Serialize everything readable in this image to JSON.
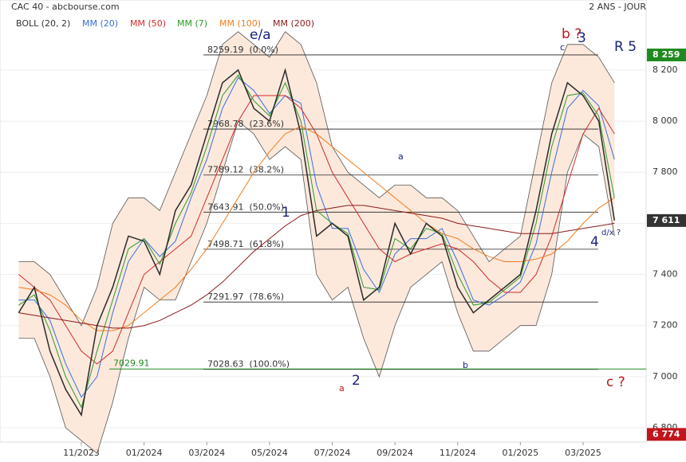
{
  "chart_data": {
    "type": "line",
    "title": "CAC 40 - abcbourse.com",
    "subtitle": "2 ANS - JOUR",
    "categories": [
      null,
      null,
      null,
      null,
      "11/2023",
      null,
      null,
      null,
      "01/2024",
      null,
      null,
      null,
      "03/2024",
      null,
      null,
      null,
      "05/2024",
      null,
      null,
      null,
      "07/2024",
      null,
      null,
      null,
      "09/2024",
      null,
      null,
      null,
      "11/2024",
      null,
      null,
      null,
      "01/2025",
      null,
      null,
      null,
      "03/2025",
      null,
      null
    ],
    "values": [
      7250,
      7350,
      7100,
      6950,
      6850,
      7200,
      7350,
      7550,
      7530,
      7400,
      7650,
      7750,
      7950,
      8150,
      8200,
      8050,
      8000,
      8200,
      7950,
      7550,
      7600,
      7550,
      7300,
      7350,
      7600,
      7480,
      7600,
      7550,
      7350,
      7250,
      7300,
      7350,
      7400,
      7650,
      7950,
      8150,
      8100,
      8000,
      7611
    ],
    "color": "#2a2a2a",
    "bands": {
      "name": "BOLL (20, 2)",
      "color": "#333333",
      "upper": [
        7450,
        7450,
        7400,
        7300,
        7200,
        7350,
        7600,
        7700,
        7700,
        7650,
        7800,
        7950,
        8100,
        8300,
        8350,
        8300,
        8250,
        8350,
        8300,
        8150,
        7900,
        7800,
        7750,
        7700,
        7750,
        7750,
        7700,
        7700,
        7650,
        7550,
        7450,
        7500,
        7550,
        7850,
        8150,
        8300,
        8300,
        8250,
        8150
      ],
      "lower": [
        7150,
        7150,
        7000,
        6800,
        6750,
        6700,
        6900,
        7150,
        7350,
        7300,
        7300,
        7450,
        7600,
        7800,
        8000,
        7950,
        7850,
        7900,
        7850,
        7400,
        7300,
        7350,
        7150,
        7000,
        7200,
        7350,
        7400,
        7450,
        7250,
        7100,
        7100,
        7150,
        7200,
        7200,
        7400,
        7800,
        7950,
        7900,
        7550
      ]
    },
    "series": [
      {
        "name": "MM (20)",
        "color": "#3a6fd8",
        "values": [
          7300,
          7300,
          7220,
          7050,
          6920,
          7000,
          7250,
          7450,
          7540,
          7470,
          7530,
          7700,
          7850,
          8050,
          8170,
          8120,
          8030,
          8100,
          8070,
          7750,
          7580,
          7580,
          7420,
          7330,
          7480,
          7540,
          7540,
          7580,
          7450,
          7300,
          7280,
          7320,
          7370,
          7520,
          7800,
          8050,
          8120,
          8060,
          7850
        ]
      },
      {
        "name": "MM (50)",
        "color": "#d42a2a",
        "values": [
          7400,
          7350,
          7300,
          7200,
          7100,
          7050,
          7100,
          7250,
          7400,
          7450,
          7500,
          7550,
          7700,
          7850,
          8000,
          8100,
          8100,
          8100,
          8050,
          7950,
          7800,
          7700,
          7600,
          7500,
          7450,
          7480,
          7500,
          7520,
          7500,
          7450,
          7380,
          7330,
          7330,
          7400,
          7550,
          7750,
          7950,
          8050,
          7950
        ]
      },
      {
        "name": "MM (7)",
        "color": "#2a9a2a",
        "values": [
          7280,
          7320,
          7180,
          7000,
          6880,
          7100,
          7300,
          7500,
          7540,
          7440,
          7600,
          7720,
          7900,
          8100,
          8180,
          8080,
          8020,
          8150,
          8000,
          7650,
          7600,
          7560,
          7350,
          7340,
          7540,
          7500,
          7580,
          7560,
          7400,
          7280,
          7290,
          7340,
          7390,
          7600,
          7900,
          8100,
          8110,
          8020,
          7700
        ]
      },
      {
        "name": "MM (100)",
        "color": "#f07d1e",
        "values": [
          7350,
          7340,
          7320,
          7280,
          7220,
          7180,
          7180,
          7200,
          7250,
          7300,
          7350,
          7420,
          7500,
          7600,
          7700,
          7800,
          7880,
          7950,
          7980,
          7950,
          7900,
          7850,
          7800,
          7750,
          7700,
          7650,
          7600,
          7560,
          7540,
          7500,
          7470,
          7450,
          7450,
          7460,
          7480,
          7530,
          7600,
          7660,
          7700
        ]
      },
      {
        "name": "MM (200)",
        "color": "#8b1a1a",
        "values": [
          7250,
          7240,
          7230,
          7220,
          7210,
          7200,
          7190,
          7190,
          7200,
          7220,
          7250,
          7280,
          7320,
          7370,
          7430,
          7490,
          7540,
          7590,
          7630,
          7650,
          7660,
          7670,
          7670,
          7660,
          7650,
          7640,
          7630,
          7620,
          7600,
          7590,
          7580,
          7570,
          7560,
          7560,
          7560,
          7570,
          7580,
          7590,
          7600
        ]
      }
    ],
    "ylim": [
      6744,
      8474
    ],
    "yticks": [
      {
        "value": 6800,
        "label": "6 800"
      },
      {
        "value": 7000,
        "label": "7 000"
      },
      {
        "value": 7200,
        "label": "7 200"
      },
      {
        "value": 7400,
        "label": "7 400"
      },
      {
        "value": 7600,
        "label": "7 600"
      },
      {
        "value": 7800,
        "label": "7 800"
      },
      {
        "value": 8000,
        "label": "8 000"
      },
      {
        "value": 8200,
        "label": "8 200"
      }
    ],
    "grid": true,
    "price_markers": [
      {
        "value": 8259,
        "label": "8 259",
        "color": "#1f8a1f"
      },
      {
        "value": 7611,
        "label": "7 611",
        "color": "#333333"
      },
      {
        "value": 6774,
        "label": "6 774",
        "color": "#c0151b"
      }
    ],
    "fib_levels": [
      {
        "value": 8259.19,
        "label": "8259.19  (0.0%)"
      },
      {
        "value": 7968.78,
        "label": "7968.78  (23.6%)"
      },
      {
        "value": 7789.12,
        "label": "7789.12  (38.2%)"
      },
      {
        "value": 7643.91,
        "label": "7643.91  (50.0%)"
      },
      {
        "value": 7498.71,
        "label": "7498.71  (61.8%)"
      },
      {
        "value": 7291.97,
        "label": "7291.97  (78.6%)"
      },
      {
        "value": 7028.63,
        "label": "7028.63  (100.0%)"
      }
    ],
    "support": 7029.91,
    "annotations": [
      "e/a",
      "1",
      "a",
      "2",
      "a",
      "b",
      "c",
      "b ?",
      "3",
      "R 5",
      "4",
      "d/x ?",
      "c ?"
    ]
  }
}
